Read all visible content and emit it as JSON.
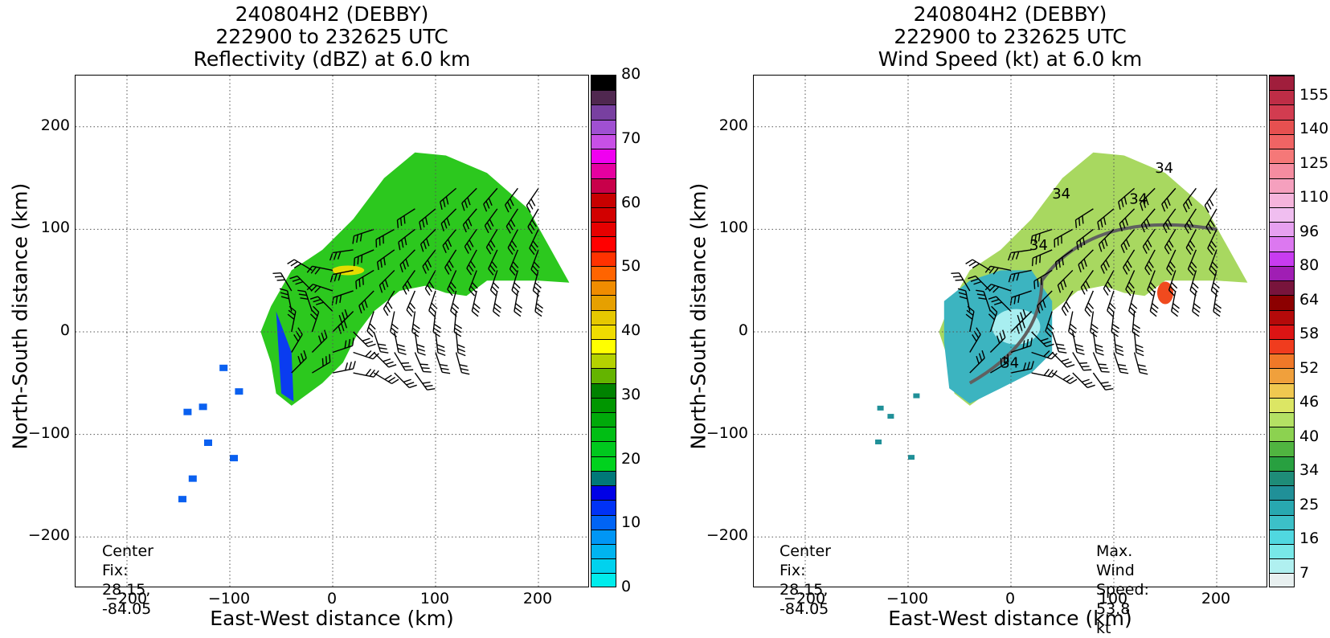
{
  "panels": [
    {
      "title_line1": "240804H2 (DEBBY)",
      "title_line2": "222900 to 232625 UTC",
      "title_line3": "Reflectivity (dBZ) at 6.0 km",
      "xlabel": "East-West distance (km)",
      "ylabel": "North-South distance (km)",
      "center_fix_label": "Center Fix:",
      "center_fix_value": "28.15, -84.05",
      "colorbar_ticks": [
        "0",
        "10",
        "20",
        "30",
        "40",
        "50",
        "60",
        "70",
        "80"
      ],
      "colorbar_colors": [
        "#00ecec",
        "#00d2ee",
        "#00b4f0",
        "#0096f5",
        "#0064f5",
        "#0032f5",
        "#0000e6",
        "#007878",
        "#00d21e",
        "#00c81e",
        "#00be14",
        "#00aa0a",
        "#009600",
        "#008200",
        "#64b400",
        "#b4d200",
        "#ffff00",
        "#f0dc00",
        "#e6c800",
        "#e6a000",
        "#f08c00",
        "#ff6400",
        "#ff3200",
        "#ff0000",
        "#e60000",
        "#d20000",
        "#c80000",
        "#c8004a",
        "#e600a0",
        "#f000f0",
        "#c850e6",
        "#a050d2",
        "#7840a0",
        "#502850",
        "#000000"
      ]
    },
    {
      "title_line1": "240804H2 (DEBBY)",
      "title_line2": "222900 to 232625 UTC",
      "title_line3": "Wind Speed (kt) at 6.0 km",
      "xlabel": "East-West distance (km)",
      "ylabel": "North-South distance (km)",
      "center_fix_label": "Center Fix:",
      "center_fix_value": "28.15, -84.05",
      "max_wind_label": "Max. Wind Speed:",
      "max_wind_value": "53.8 kt",
      "colorbar_ticks": [
        "7",
        "16",
        "25",
        "34",
        "40",
        "46",
        "52",
        "58",
        "64",
        "80",
        "96",
        "110",
        "125",
        "140",
        "155"
      ],
      "colorbar_colors": [
        "#e8f0f0",
        "#b0f0f0",
        "#78e8e8",
        "#50d8e0",
        "#3cc0c8",
        "#28a8b0",
        "#209098",
        "#1e8c78",
        "#28a040",
        "#50b440",
        "#8cd250",
        "#b4e164",
        "#dce664",
        "#f0c850",
        "#f0a03c",
        "#f07828",
        "#f03c1e",
        "#dc1414",
        "#b40a0a",
        "#8c0000",
        "#78143c",
        "#a01eb4",
        "#c83cf0",
        "#dc78f0",
        "#e6a0f0",
        "#f0bef0",
        "#f5b4dc",
        "#f5a0be",
        "#f58ca0",
        "#f57878",
        "#f06464",
        "#e65050",
        "#d23c50",
        "#be2d46",
        "#a01e3c"
      ],
      "contour_label": "34"
    }
  ],
  "chart_data": [
    {
      "type": "heatmap",
      "title": "240804H2 (DEBBY) 222900 to 232625 UTC Reflectivity (dBZ) at 6.0 km",
      "xlabel": "East-West distance (km)",
      "ylabel": "North-South distance (km)",
      "xlim": [
        -250,
        250
      ],
      "ylim": [
        -250,
        250
      ],
      "x_ticks": [
        -200,
        -100,
        0,
        100,
        200
      ],
      "y_ticks": [
        -200,
        -100,
        0,
        100,
        200
      ],
      "grid": true,
      "colorbar_range": [
        0,
        80
      ],
      "center_fix": [
        28.15,
        -84.05
      ],
      "overlay": "wind barbs"
    },
    {
      "type": "heatmap",
      "title": "240804H2 (DEBBY) 222900 to 232625 UTC Wind Speed (kt) at 6.0 km",
      "xlabel": "East-West distance (km)",
      "ylabel": "North-South distance (km)",
      "xlim": [
        -250,
        250
      ],
      "ylim": [
        -250,
        250
      ],
      "x_ticks": [
        -200,
        -100,
        0,
        100,
        200
      ],
      "y_ticks": [
        -200,
        -100,
        0,
        100,
        200
      ],
      "grid": true,
      "colorbar_range": [
        7,
        160
      ],
      "center_fix": [
        28.15,
        -84.05
      ],
      "max_wind_speed_kt": 53.8,
      "contour_level_kt": 34,
      "overlay": "wind barbs"
    }
  ]
}
